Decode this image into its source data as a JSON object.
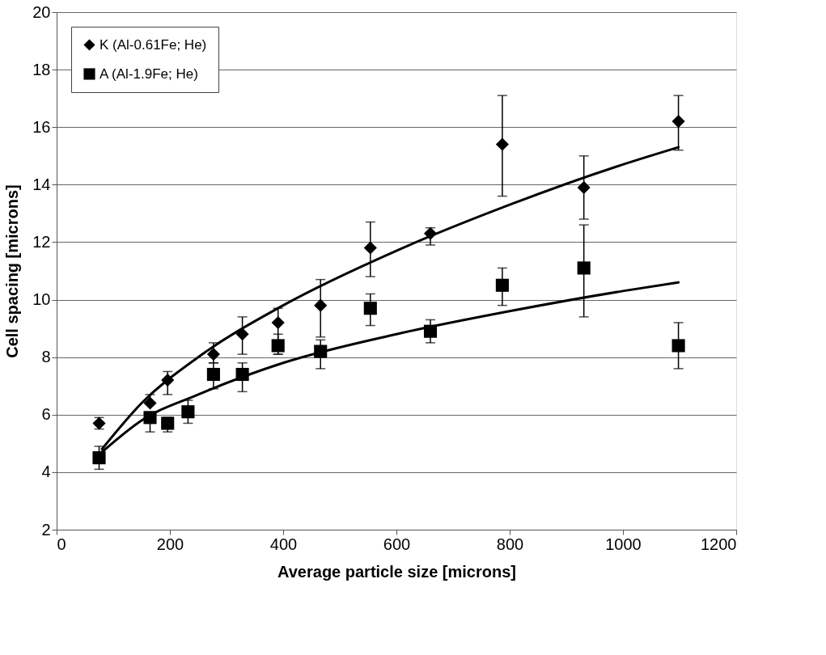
{
  "chart_data": {
    "type": "scatter",
    "xlabel": "Average particle size [microns]",
    "ylabel": "Cell spacing [microns]",
    "xlim": [
      0,
      1200
    ],
    "xticks": [
      0,
      200,
      400,
      600,
      800,
      {
        "value": 1000,
        "label": "1000"
      },
      {
        "value": 1200,
        "label": "1200"
      }
    ],
    "ylim": [
      2,
      20
    ],
    "yticks": [
      2,
      4,
      6,
      8,
      10,
      12,
      14,
      16,
      18,
      20
    ],
    "grid": "y",
    "legend": "top left",
    "series": [
      {
        "name": "K (Al-0.61Fe; He)",
        "type": "scatter",
        "marker": "diamond",
        "color": "#000000",
        "x": [
          75,
          165,
          196,
          277,
          328,
          391,
          466,
          554,
          660,
          787,
          931,
          1098
        ],
        "values": [
          5.7,
          6.4,
          7.2,
          8.1,
          8.8,
          9.2,
          9.8,
          11.8,
          12.3,
          15.4,
          13.9,
          16.2
        ],
        "errors": [
          [
            5.5,
            5.9
          ],
          [
            6.4,
            6.7
          ],
          [
            6.7,
            7.5
          ],
          [
            7.8,
            8.5
          ],
          [
            8.1,
            9.4
          ],
          [
            8.1,
            9.7
          ],
          [
            8.7,
            10.7
          ],
          [
            10.8,
            12.7
          ],
          [
            11.9,
            12.5
          ],
          [
            13.6,
            17.1
          ],
          [
            12.8,
            15.0
          ],
          [
            15.2,
            17.1
          ]
        ]
      },
      {
        "name": "A (Al-1.9Fe; He)",
        "type": "scatter",
        "marker": "square",
        "color": "#000000",
        "x": [
          75,
          165,
          196,
          232,
          277,
          328,
          391,
          466,
          554,
          660,
          787,
          931,
          1098
        ],
        "values": [
          4.5,
          5.9,
          5.7,
          6.1,
          7.4,
          7.4,
          8.4,
          8.2,
          9.7,
          8.9,
          10.5,
          11.1,
          8.4
        ],
        "errors": [
          [
            4.1,
            4.9
          ],
          [
            5.4,
            5.9
          ],
          [
            5.4,
            5.9
          ],
          [
            5.7,
            6.5
          ],
          [
            6.9,
            7.8
          ],
          [
            6.8,
            7.8
          ],
          [
            8.1,
            8.8
          ],
          [
            7.6,
            8.6
          ],
          [
            9.1,
            10.2
          ],
          [
            8.5,
            9.3
          ],
          [
            9.8,
            11.1
          ],
          [
            9.4,
            12.6
          ],
          [
            7.6,
            9.2
          ]
        ]
      },
      {
        "type": "line",
        "marker": "none",
        "line_style": "solid",
        "color": "#000000",
        "x": [
          80,
          150,
          250,
          400,
          600,
          800,
          1000,
          1098
        ],
        "values": [
          4.8,
          6.4,
          8.0,
          9.8,
          11.7,
          13.3,
          14.7,
          15.3
        ]
      },
      {
        "type": "line",
        "marker": "none",
        "line_style": "solid",
        "color": "#000000",
        "x": [
          80,
          150,
          250,
          400,
          600,
          800,
          1000,
          1098
        ],
        "values": [
          4.7,
          5.8,
          6.7,
          7.8,
          8.8,
          9.6,
          10.3,
          10.6
        ]
      }
    ]
  }
}
